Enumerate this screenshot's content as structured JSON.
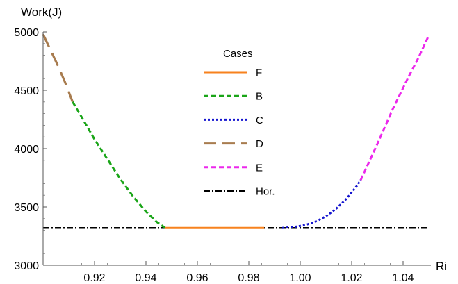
{
  "chart_data": {
    "type": "line",
    "xlabel": "Ri",
    "ylabel": "Work(J)",
    "xlim": [
      0.9,
      1.05
    ],
    "ylim": [
      3000,
      5000
    ],
    "x_ticks": [
      0.92,
      0.94,
      0.96,
      0.98,
      1.0,
      1.02,
      1.04
    ],
    "x_tick_labels": [
      "0.92",
      "0.94",
      "0.96",
      "0.98",
      "1.00",
      "1.02",
      "1.04"
    ],
    "y_ticks": [
      3000,
      3500,
      4000,
      4500,
      5000
    ],
    "y_tick_labels": [
      "3000",
      "3500",
      "4000",
      "4500",
      "5000"
    ],
    "grid": false,
    "legend_title": "Cases",
    "legend_placement": "top-center",
    "series": [
      {
        "name": "F",
        "color": "#f7821e",
        "dash": "solid",
        "points": [
          [
            0.9475,
            3320
          ],
          [
            0.986,
            3320
          ]
        ]
      },
      {
        "name": "B",
        "color": "#1aa518",
        "dash": "short-dash",
        "points": [
          [
            0.9115,
            4400
          ],
          [
            0.915,
            4270
          ],
          [
            0.92,
            4080
          ],
          [
            0.925,
            3910
          ],
          [
            0.93,
            3740
          ],
          [
            0.935,
            3590
          ],
          [
            0.94,
            3460
          ],
          [
            0.944,
            3375
          ],
          [
            0.9475,
            3320
          ]
        ]
      },
      {
        "name": "C",
        "color": "#1515cf",
        "dash": "dotted",
        "points": [
          [
            0.993,
            3320
          ],
          [
            0.998,
            3330
          ],
          [
            1.002,
            3345
          ],
          [
            1.006,
            3375
          ],
          [
            1.01,
            3420
          ],
          [
            1.014,
            3485
          ],
          [
            1.018,
            3570
          ],
          [
            1.022,
            3680
          ],
          [
            1.0235,
            3730
          ]
        ]
      },
      {
        "name": "D",
        "color": "#a87c4f",
        "dash": "long-dash",
        "points": [
          [
            0.9,
            4980
          ],
          [
            0.903,
            4840
          ],
          [
            0.906,
            4700
          ],
          [
            0.9085,
            4570
          ],
          [
            0.9115,
            4400
          ]
        ]
      },
      {
        "name": "E",
        "color": "#ec28ec",
        "dash": "short-dash",
        "points": [
          [
            1.0235,
            3730
          ],
          [
            1.03,
            4040
          ],
          [
            1.036,
            4340
          ],
          [
            1.042,
            4610
          ],
          [
            1.046,
            4780
          ],
          [
            1.05,
            4970
          ]
        ]
      },
      {
        "name": "Hor.",
        "color": "#000000",
        "dash": "dash-dot",
        "points": [
          [
            0.9,
            3320
          ],
          [
            1.05,
            3320
          ]
        ]
      }
    ]
  }
}
